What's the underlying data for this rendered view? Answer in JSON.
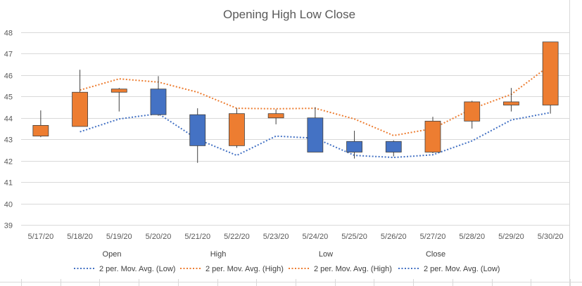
{
  "chart_data": {
    "type": "candlestick",
    "title": "Opening High Low Close",
    "ylim": [
      39,
      48
    ],
    "yticks": [
      "39",
      "40",
      "41",
      "42",
      "43",
      "44",
      "45",
      "46",
      "47",
      "48"
    ],
    "categories": [
      "5/17/20",
      "5/18/20",
      "5/19/20",
      "5/20/20",
      "5/21/20",
      "5/22/20",
      "5/23/20",
      "5/24/20",
      "5/25/20",
      "5/26/20",
      "5/27/20",
      "5/28/20",
      "5/29/20",
      "5/30/20"
    ],
    "series": [
      {
        "name": "Open",
        "values": [
          43.15,
          43.6,
          45.2,
          45.35,
          44.15,
          42.7,
          44.0,
          44.0,
          42.9,
          42.9,
          42.4,
          43.85,
          44.6,
          44.6
        ]
      },
      {
        "name": "High",
        "values": [
          44.35,
          46.25,
          45.4,
          45.95,
          44.45,
          44.45,
          44.4,
          44.5,
          43.4,
          42.95,
          44.05,
          44.8,
          45.4,
          47.55
        ]
      },
      {
        "name": "Low",
        "values": [
          43.1,
          43.6,
          44.3,
          44.1,
          41.9,
          42.6,
          43.7,
          42.4,
          42.1,
          42.2,
          42.35,
          43.5,
          44.3,
          44.2
        ]
      },
      {
        "name": "Close",
        "values": [
          43.65,
          45.2,
          45.35,
          44.15,
          42.7,
          44.2,
          44.2,
          42.4,
          42.4,
          42.4,
          43.85,
          44.75,
          44.75,
          47.55
        ]
      }
    ],
    "category_labels": [
      "Open",
      "High",
      "Low",
      "Close"
    ],
    "trendlines": [
      {
        "name": "2 per. Mov. Avg. (Low)",
        "of": "Low",
        "color": "#4472C4"
      },
      {
        "name": "2 per. Mov. Avg. (High)",
        "of": "High",
        "color": "#ED7D31"
      },
      {
        "name": "2 per. Mov. Avg. (High)",
        "of": "High",
        "color": "#ED7D31"
      },
      {
        "name": "2 per. Mov. Avg. (Low)",
        "of": "Low",
        "color": "#4472C4"
      }
    ],
    "colors": {
      "up": "#ED7D31",
      "down": "#4472C4",
      "grid": "#D9D9D9",
      "wick": "#404040"
    },
    "grid": true,
    "legend_position": "bottom"
  }
}
